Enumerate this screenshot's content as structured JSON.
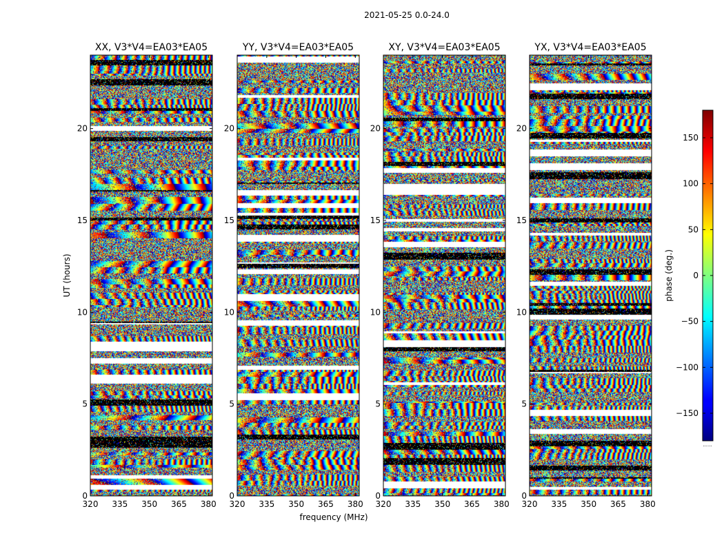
{
  "suptitle": "2021-05-25 0.0-24.0",
  "chart_data": {
    "type": "heatmap",
    "xlabel": "frequency (MHz)",
    "ylabel": "UT (hours)",
    "xlim": [
      320,
      382
    ],
    "ylim": [
      0,
      24
    ],
    "xticks": [
      320,
      335,
      350,
      365,
      380
    ],
    "yticks": [
      0,
      5,
      10,
      15,
      20
    ],
    "panels": [
      {
        "title": "XX, V3*V4=EA03*EA05"
      },
      {
        "title": "YY, V3*V4=EA03*EA05"
      },
      {
        "title": "XY, V3*V4=EA03*EA05"
      },
      {
        "title": "YX, V3*V4=EA03*EA05"
      }
    ],
    "colorbar": {
      "label": "phase (deg.)",
      "range": [
        -180,
        180
      ],
      "ticks": [
        -150,
        -100,
        -50,
        0,
        50,
        100,
        150
      ],
      "colormap": "jet",
      "footer": "......"
    }
  }
}
